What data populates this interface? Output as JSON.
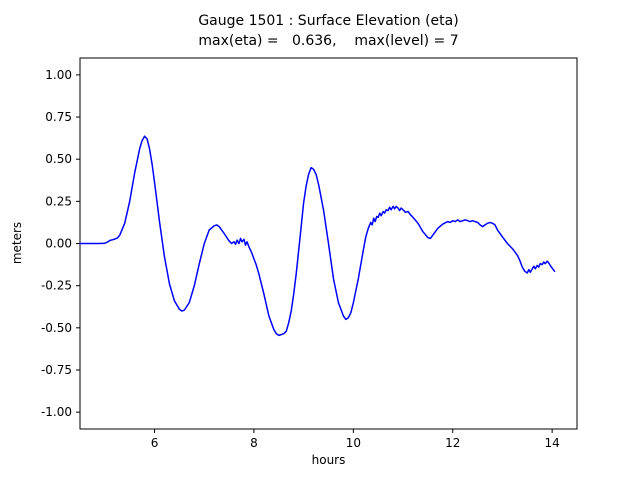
{
  "chart_data": {
    "type": "line",
    "title": "Gauge 1501 : Surface Elevation (eta)",
    "subtitle": "max(eta) =   0.636,    max(level) = 7",
    "max_eta": 0.636,
    "max_level": 7,
    "xlabel": "hours",
    "ylabel": "meters",
    "xlim": [
      4.5,
      14.5
    ],
    "ylim": [
      -1.1,
      1.1
    ],
    "xticks": [
      6,
      8,
      10,
      12,
      14
    ],
    "yticks": [
      -1.0,
      -0.75,
      -0.5,
      -0.25,
      0.0,
      0.25,
      0.5,
      0.75,
      1.0
    ],
    "grid": false,
    "legend": "none",
    "line_color": "#0000ff",
    "series": [
      {
        "name": "eta",
        "points": [
          [
            4.5,
            0.0
          ],
          [
            4.6,
            0.0
          ],
          [
            4.7,
            0.0
          ],
          [
            4.8,
            0.0
          ],
          [
            4.9,
            0.0
          ],
          [
            5.0,
            0.002
          ],
          [
            5.05,
            0.008
          ],
          [
            5.1,
            0.018
          ],
          [
            5.15,
            0.022
          ],
          [
            5.2,
            0.026
          ],
          [
            5.25,
            0.032
          ],
          [
            5.3,
            0.05
          ],
          [
            5.4,
            0.12
          ],
          [
            5.5,
            0.25
          ],
          [
            5.6,
            0.42
          ],
          [
            5.7,
            0.56
          ],
          [
            5.75,
            0.61
          ],
          [
            5.8,
            0.636
          ],
          [
            5.85,
            0.62
          ],
          [
            5.9,
            0.56
          ],
          [
            5.95,
            0.47
          ],
          [
            6.0,
            0.36
          ],
          [
            6.1,
            0.13
          ],
          [
            6.2,
            -0.08
          ],
          [
            6.3,
            -0.24
          ],
          [
            6.4,
            -0.34
          ],
          [
            6.5,
            -0.39
          ],
          [
            6.55,
            -0.4
          ],
          [
            6.6,
            -0.395
          ],
          [
            6.7,
            -0.35
          ],
          [
            6.8,
            -0.25
          ],
          [
            6.9,
            -0.12
          ],
          [
            7.0,
            0.0
          ],
          [
            7.1,
            0.08
          ],
          [
            7.2,
            0.105
          ],
          [
            7.25,
            0.11
          ],
          [
            7.3,
            0.1
          ],
          [
            7.4,
            0.06
          ],
          [
            7.5,
            0.015
          ],
          [
            7.55,
            0.0
          ],
          [
            7.6,
            0.01
          ],
          [
            7.63,
            -0.005
          ],
          [
            7.66,
            0.02
          ],
          [
            7.7,
            0.0
          ],
          [
            7.73,
            0.03
          ],
          [
            7.76,
            0.01
          ],
          [
            7.8,
            0.025
          ],
          [
            7.83,
            -0.01
          ],
          [
            7.86,
            0.01
          ],
          [
            7.9,
            -0.02
          ],
          [
            7.93,
            -0.04
          ],
          [
            7.96,
            -0.06
          ],
          [
            8.0,
            -0.09
          ],
          [
            8.05,
            -0.13
          ],
          [
            8.1,
            -0.18
          ],
          [
            8.2,
            -0.3
          ],
          [
            8.3,
            -0.43
          ],
          [
            8.4,
            -0.51
          ],
          [
            8.45,
            -0.535
          ],
          [
            8.5,
            -0.545
          ],
          [
            8.55,
            -0.54
          ],
          [
            8.6,
            -0.535
          ],
          [
            8.65,
            -0.52
          ],
          [
            8.7,
            -0.47
          ],
          [
            8.75,
            -0.4
          ],
          [
            8.8,
            -0.3
          ],
          [
            8.85,
            -0.18
          ],
          [
            8.9,
            -0.04
          ],
          [
            8.95,
            0.1
          ],
          [
            9.0,
            0.24
          ],
          [
            9.05,
            0.34
          ],
          [
            9.1,
            0.41
          ],
          [
            9.15,
            0.45
          ],
          [
            9.2,
            0.44
          ],
          [
            9.25,
            0.41
          ],
          [
            9.3,
            0.35
          ],
          [
            9.4,
            0.2
          ],
          [
            9.5,
            0.0
          ],
          [
            9.6,
            -0.21
          ],
          [
            9.7,
            -0.35
          ],
          [
            9.8,
            -0.43
          ],
          [
            9.85,
            -0.45
          ],
          [
            9.9,
            -0.44
          ],
          [
            9.95,
            -0.41
          ],
          [
            10.0,
            -0.35
          ],
          [
            10.1,
            -0.21
          ],
          [
            10.2,
            -0.04
          ],
          [
            10.25,
            0.04
          ],
          [
            10.3,
            0.09
          ],
          [
            10.35,
            0.125
          ],
          [
            10.38,
            0.11
          ],
          [
            10.41,
            0.15
          ],
          [
            10.44,
            0.13
          ],
          [
            10.47,
            0.16
          ],
          [
            10.5,
            0.155
          ],
          [
            10.53,
            0.18
          ],
          [
            10.56,
            0.165
          ],
          [
            10.6,
            0.19
          ],
          [
            10.63,
            0.18
          ],
          [
            10.66,
            0.2
          ],
          [
            10.7,
            0.195
          ],
          [
            10.73,
            0.215
          ],
          [
            10.76,
            0.2
          ],
          [
            10.8,
            0.22
          ],
          [
            10.83,
            0.205
          ],
          [
            10.86,
            0.22
          ],
          [
            10.9,
            0.21
          ],
          [
            10.93,
            0.195
          ],
          [
            10.96,
            0.21
          ],
          [
            11.0,
            0.2
          ],
          [
            11.05,
            0.185
          ],
          [
            11.1,
            0.19
          ],
          [
            11.15,
            0.17
          ],
          [
            11.2,
            0.155
          ],
          [
            11.3,
            0.12
          ],
          [
            11.4,
            0.07
          ],
          [
            11.5,
            0.035
          ],
          [
            11.55,
            0.03
          ],
          [
            11.6,
            0.05
          ],
          [
            11.7,
            0.09
          ],
          [
            11.8,
            0.115
          ],
          [
            11.9,
            0.13
          ],
          [
            11.95,
            0.125
          ],
          [
            12.0,
            0.135
          ],
          [
            12.05,
            0.13
          ],
          [
            12.1,
            0.14
          ],
          [
            12.15,
            0.13
          ],
          [
            12.2,
            0.135
          ],
          [
            12.25,
            0.14
          ],
          [
            12.3,
            0.135
          ],
          [
            12.35,
            0.13
          ],
          [
            12.4,
            0.135
          ],
          [
            12.45,
            0.13
          ],
          [
            12.5,
            0.125
          ],
          [
            12.55,
            0.11
          ],
          [
            12.6,
            0.1
          ],
          [
            12.65,
            0.11
          ],
          [
            12.7,
            0.12
          ],
          [
            12.75,
            0.125
          ],
          [
            12.8,
            0.12
          ],
          [
            12.85,
            0.11
          ],
          [
            12.9,
            0.08
          ],
          [
            13.0,
            0.04
          ],
          [
            13.1,
            0.0
          ],
          [
            13.2,
            -0.03
          ],
          [
            13.3,
            -0.07
          ],
          [
            13.35,
            -0.1
          ],
          [
            13.4,
            -0.14
          ],
          [
            13.45,
            -0.165
          ],
          [
            13.5,
            -0.175
          ],
          [
            13.53,
            -0.155
          ],
          [
            13.56,
            -0.17
          ],
          [
            13.6,
            -0.15
          ],
          [
            13.63,
            -0.135
          ],
          [
            13.66,
            -0.15
          ],
          [
            13.7,
            -0.13
          ],
          [
            13.73,
            -0.14
          ],
          [
            13.76,
            -0.12
          ],
          [
            13.8,
            -0.125
          ],
          [
            13.83,
            -0.11
          ],
          [
            13.86,
            -0.12
          ],
          [
            13.9,
            -0.105
          ],
          [
            13.93,
            -0.115
          ],
          [
            13.96,
            -0.13
          ],
          [
            14.0,
            -0.145
          ],
          [
            14.05,
            -0.165
          ]
        ]
      }
    ]
  }
}
